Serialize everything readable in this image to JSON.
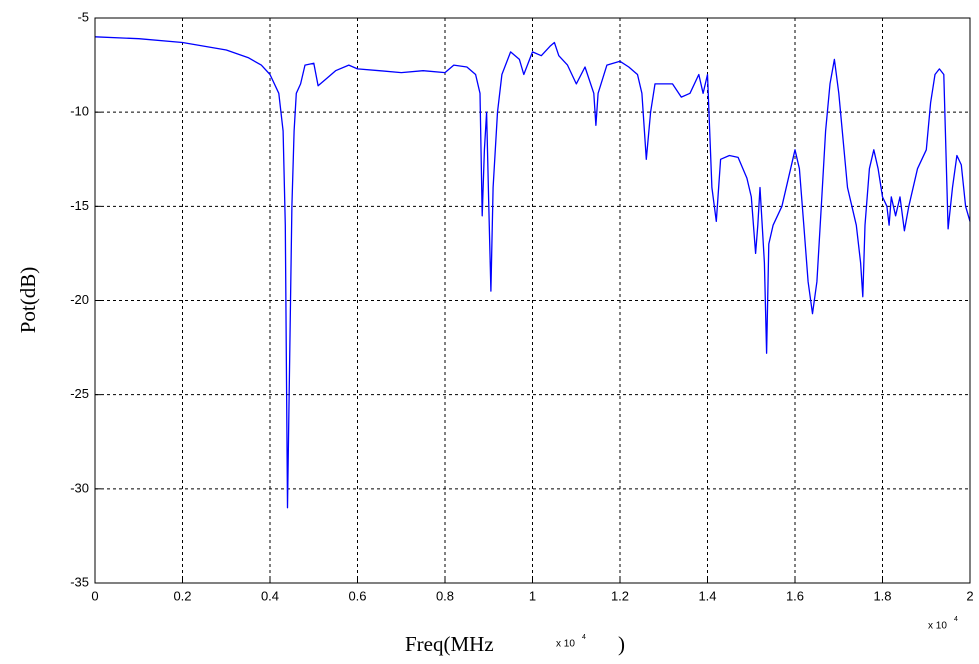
{
  "chart_data": {
    "type": "line",
    "x_label": "Freq(MHz",
    "x_label_end": ")",
    "y_label": "Pot(dB)",
    "x_multiplier": "x 10",
    "x_multiplier_exponent": "4",
    "color": "#0000ff",
    "grid": true,
    "xlim": [
      0,
      2
    ],
    "ylim": [
      -35,
      -5
    ],
    "xticks": [
      0,
      0.2,
      0.4,
      0.6,
      0.8,
      1,
      1.2,
      1.4,
      1.6,
      1.8,
      2
    ],
    "yticks": [
      -35,
      -30,
      -25,
      -20,
      -15,
      -10,
      -5
    ],
    "x": [
      0,
      0.1,
      0.2,
      0.3,
      0.35,
      0.38,
      0.4,
      0.42,
      0.43,
      0.435,
      0.44,
      0.445,
      0.45,
      0.455,
      0.46,
      0.47,
      0.48,
      0.5,
      0.51,
      0.53,
      0.55,
      0.58,
      0.6,
      0.65,
      0.7,
      0.75,
      0.8,
      0.82,
      0.85,
      0.87,
      0.88,
      0.885,
      0.89,
      0.895,
      0.9,
      0.905,
      0.91,
      0.92,
      0.93,
      0.95,
      0.97,
      0.98,
      1.0,
      1.02,
      1.04,
      1.05,
      1.06,
      1.08,
      1.1,
      1.12,
      1.14,
      1.145,
      1.15,
      1.17,
      1.2,
      1.22,
      1.24,
      1.25,
      1.26,
      1.27,
      1.28,
      1.3,
      1.32,
      1.34,
      1.36,
      1.38,
      1.39,
      1.4,
      1.41,
      1.42,
      1.43,
      1.45,
      1.47,
      1.49,
      1.5,
      1.51,
      1.515,
      1.52,
      1.53,
      1.535,
      1.54,
      1.55,
      1.57,
      1.6,
      1.61,
      1.62,
      1.63,
      1.64,
      1.65,
      1.66,
      1.67,
      1.68,
      1.69,
      1.7,
      1.72,
      1.74,
      1.75,
      1.755,
      1.76,
      1.77,
      1.78,
      1.79,
      1.8,
      1.81,
      1.815,
      1.82,
      1.83,
      1.84,
      1.85,
      1.86,
      1.88,
      1.9,
      1.91,
      1.92,
      1.93,
      1.94,
      1.95,
      1.96,
      1.97,
      1.98,
      1.99,
      2.0
    ],
    "values": [
      -6.0,
      -6.1,
      -6.3,
      -6.7,
      -7.1,
      -7.5,
      -8.0,
      -9.0,
      -11,
      -16,
      -31,
      -23,
      -15,
      -11,
      -9,
      -8.5,
      -7.5,
      -7.4,
      -8.6,
      -8.2,
      -7.8,
      -7.5,
      -7.7,
      -7.8,
      -7.9,
      -7.8,
      -7.9,
      -7.5,
      -7.6,
      -8.0,
      -9,
      -15.5,
      -12,
      -10,
      -15,
      -19.5,
      -14,
      -10,
      -8,
      -6.8,
      -7.2,
      -8.0,
      -6.8,
      -7.0,
      -6.5,
      -6.3,
      -7.0,
      -7.5,
      -8.5,
      -7.6,
      -9,
      -10.7,
      -9,
      -7.5,
      -7.3,
      -7.6,
      -8,
      -9,
      -12.5,
      -10,
      -8.5,
      -8.5,
      -8.5,
      -9.2,
      -9,
      -8,
      -9,
      -8,
      -14,
      -15.8,
      -12.5,
      -12.3,
      -12.4,
      -13.5,
      -14.5,
      -17.5,
      -16,
      -14,
      -18,
      -22.8,
      -17,
      -16,
      -15,
      -12,
      -13,
      -16,
      -19,
      -20.7,
      -19,
      -15,
      -11,
      -8.5,
      -7.2,
      -9,
      -14,
      -16,
      -18,
      -19.8,
      -16,
      -13,
      -12,
      -13,
      -14.5,
      -15,
      -16,
      -14.5,
      -15.5,
      -14.5,
      -16.3,
      -15,
      -13,
      -12,
      -9.5,
      -8,
      -7.7,
      -8,
      -16.2,
      -14,
      -12.3,
      -12.8,
      -15,
      -15.8
    ]
  }
}
